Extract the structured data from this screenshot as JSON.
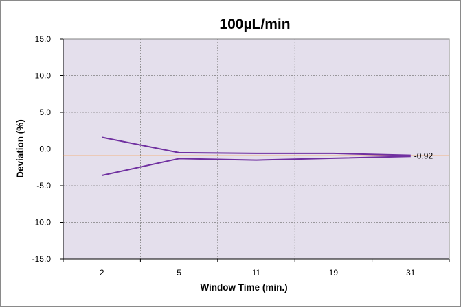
{
  "chart_data": {
    "type": "line",
    "title": "100µL/min",
    "xlabel": "Window Time (min.)",
    "ylabel": "Deviation (%)",
    "categories": [
      "2",
      "5",
      "11",
      "19",
      "31"
    ],
    "ylim": [
      -15.0,
      15.0
    ],
    "yticks": [
      "15.0",
      "10.0",
      "5.0",
      "0.0",
      "-5.0",
      "-10.0",
      "-15.0"
    ],
    "grid": true,
    "legend": "none",
    "series": [
      {
        "values": [
          1.6,
          -0.5,
          -0.6,
          -0.6,
          -0.85
        ]
      },
      {
        "values": [
          -3.6,
          -1.3,
          -1.5,
          -1.25,
          -1.0
        ]
      }
    ],
    "reference_line": {
      "value": -0.92,
      "label": "-0.92"
    },
    "colors": {
      "plot_background": "#e4dfec",
      "series_line": "#7030a0",
      "reference_line": "#ff8c1a",
      "gridline": "#7f7f7f"
    }
  }
}
